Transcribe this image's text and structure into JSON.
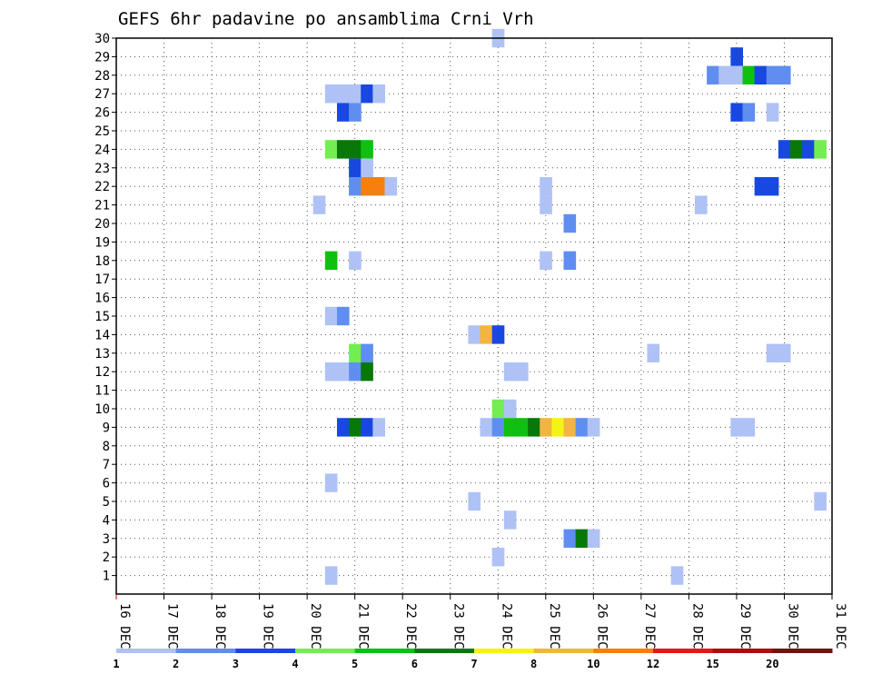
{
  "chart_data": {
    "type": "heatmap",
    "title": "GEFS 6hr padavine po ansamblima Crni Vrh",
    "xlabel": "",
    "ylabel": "",
    "x_start": "16 DEC",
    "x_tick_labels": [
      "16 DEC",
      "17 DEC",
      "18 DEC",
      "19 DEC",
      "20 DEC",
      "21 DEC",
      "22 DEC",
      "23 DEC",
      "24 DEC",
      "25 DEC",
      "26 DEC",
      "27 DEC",
      "28 DEC",
      "29 DEC",
      "30 DEC",
      "31 DEC"
    ],
    "x_range_days": [
      0,
      15
    ],
    "y_tick_labels": [
      "1",
      "2",
      "3",
      "4",
      "5",
      "6",
      "7",
      "8",
      "9",
      "10",
      "11",
      "12",
      "13",
      "14",
      "15",
      "16",
      "17",
      "18",
      "19",
      "20",
      "21",
      "22",
      "23",
      "24",
      "25",
      "26",
      "27",
      "28",
      "29",
      "30"
    ],
    "y_range": [
      0,
      30
    ],
    "grid": true,
    "legend_position": "bottom",
    "legend": {
      "bounds": [
        1,
        2,
        3,
        4,
        5,
        6,
        7,
        8,
        10,
        12,
        15,
        20
      ],
      "colors": [
        "#afc2f6",
        "#5f8ef0",
        "#1848e0",
        "#72ee50",
        "#10c010",
        "#087808",
        "#f4f414",
        "#f4b440",
        "#f48010",
        "#e01c10",
        "#a81010",
        "#741010"
      ]
    },
    "cells": [
      {
        "m": 30,
        "d": 8.0,
        "v": 1
      },
      {
        "m": 29,
        "d": 13.0,
        "v": 3
      },
      {
        "m": 28,
        "d": 12.5,
        "v": 2
      },
      {
        "m": 28,
        "d": 12.75,
        "v": 1
      },
      {
        "m": 28,
        "d": 13.0,
        "v": 1
      },
      {
        "m": 28,
        "d": 13.25,
        "v": 5
      },
      {
        "m": 28,
        "d": 13.5,
        "v": 3
      },
      {
        "m": 28,
        "d": 13.75,
        "v": 2
      },
      {
        "m": 28,
        "d": 14.0,
        "v": 2
      },
      {
        "m": 27,
        "d": 4.5,
        "v": 1
      },
      {
        "m": 27,
        "d": 4.75,
        "v": 1
      },
      {
        "m": 27,
        "d": 5.0,
        "v": 1
      },
      {
        "m": 27,
        "d": 5.25,
        "v": 3
      },
      {
        "m": 27,
        "d": 5.5,
        "v": 1
      },
      {
        "m": 26,
        "d": 4.75,
        "v": 3
      },
      {
        "m": 26,
        "d": 5.0,
        "v": 2
      },
      {
        "m": 26,
        "d": 13.0,
        "v": 3
      },
      {
        "m": 26,
        "d": 13.25,
        "v": 2
      },
      {
        "m": 26,
        "d": 13.75,
        "v": 1
      },
      {
        "m": 24,
        "d": 4.5,
        "v": 4
      },
      {
        "m": 24,
        "d": 4.75,
        "v": 6
      },
      {
        "m": 24,
        "d": 5.0,
        "v": 6
      },
      {
        "m": 24,
        "d": 5.25,
        "v": 5
      },
      {
        "m": 24,
        "d": 14.0,
        "v": 3
      },
      {
        "m": 24,
        "d": 14.25,
        "v": 6
      },
      {
        "m": 24,
        "d": 14.5,
        "v": 3
      },
      {
        "m": 24,
        "d": 14.75,
        "v": 4
      },
      {
        "m": 23,
        "d": 5.0,
        "v": 3
      },
      {
        "m": 23,
        "d": 5.25,
        "v": 1
      },
      {
        "m": 22,
        "d": 5.0,
        "v": 2
      },
      {
        "m": 22,
        "d": 5.25,
        "v": 10
      },
      {
        "m": 22,
        "d": 5.5,
        "v": 10
      },
      {
        "m": 22,
        "d": 5.75,
        "v": 1
      },
      {
        "m": 22,
        "d": 9.0,
        "v": 1
      },
      {
        "m": 22,
        "d": 13.5,
        "v": 3
      },
      {
        "m": 22,
        "d": 13.75,
        "v": 3
      },
      {
        "m": 21,
        "d": 4.25,
        "v": 1
      },
      {
        "m": 21,
        "d": 9.0,
        "v": 1
      },
      {
        "m": 21,
        "d": 12.25,
        "v": 1
      },
      {
        "m": 20,
        "d": 9.5,
        "v": 2
      },
      {
        "m": 18,
        "d": 4.5,
        "v": 5
      },
      {
        "m": 18,
        "d": 5.0,
        "v": 1
      },
      {
        "m": 18,
        "d": 9.0,
        "v": 1
      },
      {
        "m": 18,
        "d": 9.5,
        "v": 2
      },
      {
        "m": 15,
        "d": 4.5,
        "v": 1
      },
      {
        "m": 15,
        "d": 4.75,
        "v": 2
      },
      {
        "m": 14,
        "d": 7.5,
        "v": 1
      },
      {
        "m": 14,
        "d": 7.75,
        "v": 8
      },
      {
        "m": 14,
        "d": 8.0,
        "v": 3
      },
      {
        "m": 13,
        "d": 5.0,
        "v": 4
      },
      {
        "m": 13,
        "d": 5.25,
        "v": 2
      },
      {
        "m": 13,
        "d": 11.25,
        "v": 1
      },
      {
        "m": 13,
        "d": 13.75,
        "v": 1
      },
      {
        "m": 13,
        "d": 14.0,
        "v": 1
      },
      {
        "m": 12,
        "d": 4.5,
        "v": 1
      },
      {
        "m": 12,
        "d": 4.75,
        "v": 1
      },
      {
        "m": 12,
        "d": 5.0,
        "v": 2
      },
      {
        "m": 12,
        "d": 5.25,
        "v": 6
      },
      {
        "m": 12,
        "d": 8.25,
        "v": 1
      },
      {
        "m": 12,
        "d": 8.5,
        "v": 1
      },
      {
        "m": 10,
        "d": 8.0,
        "v": 4
      },
      {
        "m": 10,
        "d": 8.25,
        "v": 1
      },
      {
        "m": 9,
        "d": 4.75,
        "v": 3
      },
      {
        "m": 9,
        "d": 5.0,
        "v": 6
      },
      {
        "m": 9,
        "d": 5.25,
        "v": 3
      },
      {
        "m": 9,
        "d": 5.5,
        "v": 1
      },
      {
        "m": 9,
        "d": 7.75,
        "v": 1
      },
      {
        "m": 9,
        "d": 8.0,
        "v": 2
      },
      {
        "m": 9,
        "d": 8.25,
        "v": 5
      },
      {
        "m": 9,
        "d": 8.5,
        "v": 5
      },
      {
        "m": 9,
        "d": 8.75,
        "v": 6
      },
      {
        "m": 9,
        "d": 9.0,
        "v": 8
      },
      {
        "m": 9,
        "d": 9.25,
        "v": 7
      },
      {
        "m": 9,
        "d": 9.5,
        "v": 8
      },
      {
        "m": 9,
        "d": 9.75,
        "v": 2
      },
      {
        "m": 9,
        "d": 10.0,
        "v": 1
      },
      {
        "m": 9,
        "d": 13.0,
        "v": 1
      },
      {
        "m": 9,
        "d": 13.25,
        "v": 1
      },
      {
        "m": 6,
        "d": 4.5,
        "v": 1
      },
      {
        "m": 5,
        "d": 7.5,
        "v": 1
      },
      {
        "m": 5,
        "d": 14.75,
        "v": 1
      },
      {
        "m": 4,
        "d": 8.25,
        "v": 1
      },
      {
        "m": 3,
        "d": 9.5,
        "v": 2
      },
      {
        "m": 3,
        "d": 9.75,
        "v": 6
      },
      {
        "m": 3,
        "d": 10.0,
        "v": 1
      },
      {
        "m": 2,
        "d": 8.0,
        "v": 1
      },
      {
        "m": 1,
        "d": 4.5,
        "v": 1
      },
      {
        "m": 1,
        "d": 11.75,
        "v": 1
      }
    ]
  }
}
